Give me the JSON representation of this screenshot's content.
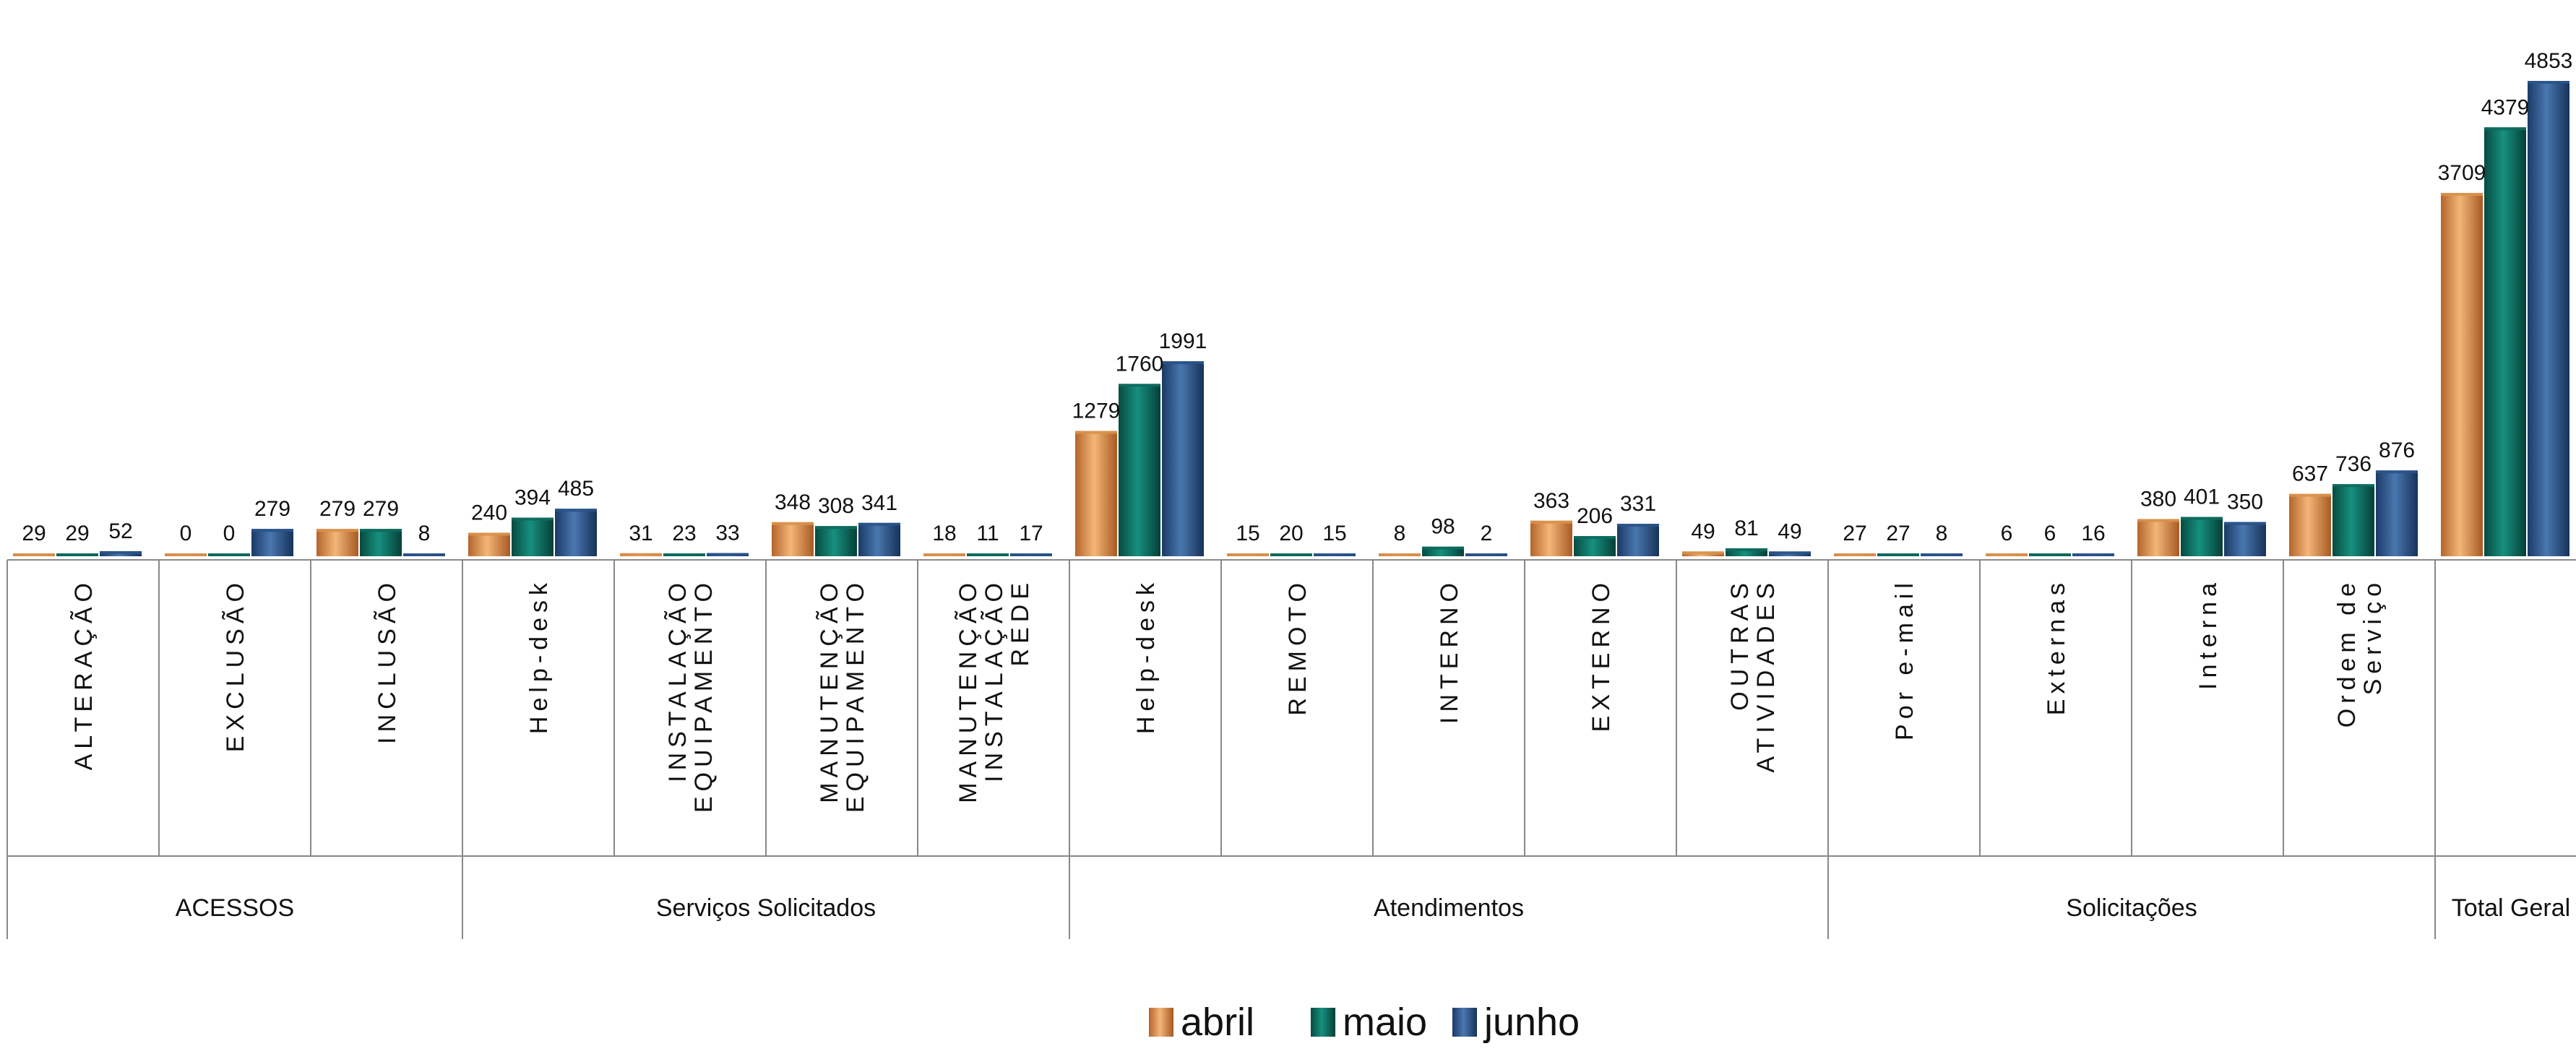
{
  "chart_data": {
    "type": "bar",
    "title": "",
    "xlabel": "",
    "ylabel": "",
    "ylim": [
      0,
      5000
    ],
    "grid": false,
    "legend_position": "bottom-center",
    "colors": {
      "abril": "#d9914a",
      "maio": "#0c6b5e",
      "junho": "#2a5389"
    },
    "series": [
      {
        "name": "abril",
        "values": [
          29,
          0,
          279,
          240,
          31,
          348,
          18,
          1279,
          15,
          8,
          363,
          49,
          27,
          6,
          380,
          637,
          3709
        ]
      },
      {
        "name": "maio",
        "values": [
          29,
          0,
          279,
          394,
          23,
          308,
          11,
          1760,
          20,
          98,
          206,
          81,
          27,
          6,
          401,
          736,
          4379
        ]
      },
      {
        "name": "junho",
        "values": [
          52,
          279,
          8,
          485,
          33,
          341,
          17,
          1991,
          15,
          2,
          331,
          49,
          8,
          16,
          350,
          876,
          4853
        ]
      }
    ],
    "categories": [
      {
        "group": "ACESSOS",
        "label": [
          "ALTERAÇÃO"
        ]
      },
      {
        "group": "ACESSOS",
        "label": [
          "EXCLUSÃO"
        ]
      },
      {
        "group": "ACESSOS",
        "label": [
          "INCLUSÃO"
        ]
      },
      {
        "group": "Serviços Solicitados",
        "label": [
          "Help-desk"
        ]
      },
      {
        "group": "Serviços Solicitados",
        "label": [
          "INSTALAÇÃO",
          "EQUIPAMENTO"
        ]
      },
      {
        "group": "Serviços Solicitados",
        "label": [
          "MANUTENÇÃO",
          "EQUIPAMENTO"
        ]
      },
      {
        "group": "Serviços Solicitados",
        "label": [
          "MANUTENÇÃO",
          "INSTALAÇÃO",
          "REDE"
        ]
      },
      {
        "group": "Atendimentos",
        "label": [
          "Help-desk"
        ]
      },
      {
        "group": "Atendimentos",
        "label": [
          "REMOTO"
        ]
      },
      {
        "group": "Atendimentos",
        "label": [
          "INTERNO"
        ]
      },
      {
        "group": "Atendimentos",
        "label": [
          "EXTERNO"
        ]
      },
      {
        "group": "Atendimentos",
        "label": [
          "OUTRAS",
          "ATIVIDADES"
        ]
      },
      {
        "group": "Solicitações",
        "label": [
          "Por e-mail"
        ]
      },
      {
        "group": "Solicitações",
        "label": [
          "Externas"
        ]
      },
      {
        "group": "Solicitações",
        "label": [
          "Interna"
        ]
      },
      {
        "group": "Solicitações",
        "label": [
          "Ordem de",
          "Serviço"
        ]
      },
      {
        "group": "Total Geral",
        "label": []
      }
    ],
    "groups": [
      "ACESSOS",
      "Serviços Solicitados",
      "Atendimentos",
      "Solicitações",
      "Total Geral"
    ]
  }
}
